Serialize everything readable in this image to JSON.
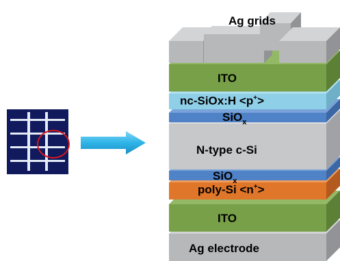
{
  "layers": {
    "ag_grids": "Ag grids",
    "ito_top": "ITO",
    "nc_siox": {
      "main": "nc-SiOx:H <p",
      "sup": "+",
      "end": ">"
    },
    "siox_top": {
      "main": "SiO",
      "sub": "x"
    },
    "n_type": "N-type c-Si",
    "siox_bottom": {
      "main": "SiO",
      "sub": "x"
    },
    "poly_si": {
      "main": "poly-Si <n",
      "sup": "+",
      "end": ">"
    },
    "ito_bottom": "ITO",
    "ag_electrode": "Ag electrode"
  },
  "colors": {
    "silver_front": "#b7b8ba",
    "silver_side": "#929396",
    "silver_top": "#d3d4d6",
    "ito_front": "#77a048",
    "ito_side": "#5c8035",
    "ito_top": "#93b866",
    "nc_siox_front": "#8fd0e8",
    "nc_siox_side": "#6fb0c8",
    "nc_siox_top": "#b2e1f1",
    "siox_front": "#4f82c6",
    "siox_side": "#3c67a5",
    "siox_top": "#78a2d9",
    "csi_front": "#c7c8ca",
    "csi_side": "#a1a2a5",
    "csi_top": "#dcdde0",
    "poly_front": "#e0762a",
    "poly_side": "#b45a1e",
    "poly_top": "#ef9b5c",
    "cell_background": "#101a5c",
    "grid_lines": "#e6ecf8",
    "zoom_circle": "#d8161e",
    "arrow": "#2fb4e8"
  },
  "icons": {
    "solar_cell": "solar-cell-icon",
    "arrow": "arrow-right-icon"
  }
}
